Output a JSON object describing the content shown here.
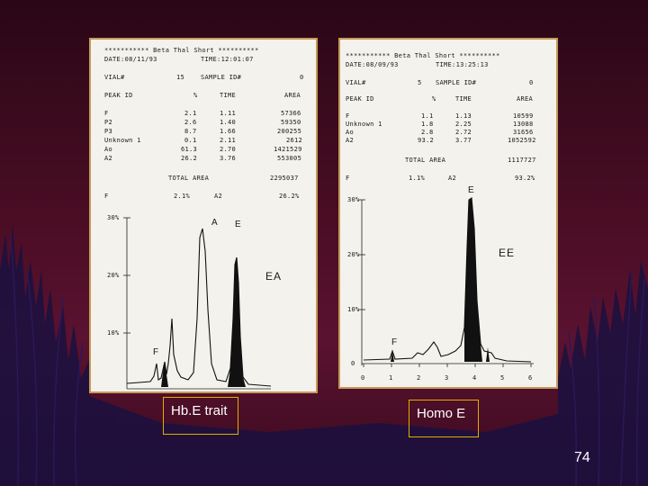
{
  "left_report": {
    "header": "*********** Beta Thal Short **********",
    "date": "DATE:08/11/93",
    "time": "TIME:12:01:07",
    "vial": "VIAL#",
    "vial_no": "15",
    "sample": "SAMPLE ID#",
    "sample_no": "0",
    "col_peak": "PEAK ID",
    "col_pct": "%",
    "col_time": "TIME",
    "col_area": "AREA",
    "rows": [
      {
        "id": "F",
        "pct": "2.1",
        "time": "1.11",
        "area": "57366"
      },
      {
        "id": "P2",
        "pct": "2.6",
        "time": "1.40",
        "area": "59350"
      },
      {
        "id": "P3",
        "pct": "8.7",
        "time": "1.66",
        "area": "200255"
      },
      {
        "id": "Unknown 1",
        "pct": "0.1",
        "time": "2.11",
        "area": "2612"
      },
      {
        "id": "Ao",
        "pct": "61.3",
        "time": "2.70",
        "area": "1421529"
      },
      {
        "id": "A2",
        "pct": "26.2",
        "time": "3.76",
        "area": "553005"
      }
    ],
    "total_label": "TOTAL AREA",
    "total_value": "2295037",
    "f_label": "F",
    "f_value": "2.1%",
    "a2_label": "A2",
    "a2_value": "26.2%",
    "yticks": [
      "30%",
      "20%",
      "10%"
    ],
    "peak_a": "A",
    "peak_e": "E",
    "peak_f": "F",
    "annotation": "EA"
  },
  "right_report": {
    "header": "*********** Beta Thal Short **********",
    "date": "DATE:08/09/93",
    "time": "TIME:13:25:13",
    "vial": "VIAL#",
    "vial_no": "5",
    "sample": "SAMPLE ID#",
    "sample_no": "0",
    "col_peak": "PEAK ID",
    "col_pct": "%",
    "col_time": "TIME",
    "col_area": "AREA",
    "rows": [
      {
        "id": "F",
        "pct": "1.1",
        "time": "1.13",
        "area": "10599"
      },
      {
        "id": "Unknown 1",
        "pct": "1.8",
        "time": "2.25",
        "area": "13088"
      },
      {
        "id": "Ao",
        "pct": "2.8",
        "time": "2.72",
        "area": "31656"
      },
      {
        "id": "A2",
        "pct": "93.2",
        "time": "3.77",
        "area": "1052592"
      }
    ],
    "total_label": "TOTAL AREA",
    "total_value": "1117727",
    "f_label": "F",
    "f_value": "1.1%",
    "a2_label": "A2",
    "a2_value": "93.2%",
    "yticks": [
      "30%",
      "20%",
      "10%",
      "0"
    ],
    "xticks": [
      "0",
      "1",
      "2",
      "3",
      "4",
      "5",
      "6"
    ],
    "peak_e": "E",
    "peak_f": "F",
    "annotation": "EE"
  },
  "captions": {
    "left": "Hb.E trait",
    "right": "Homo E"
  },
  "page_number": "74"
}
